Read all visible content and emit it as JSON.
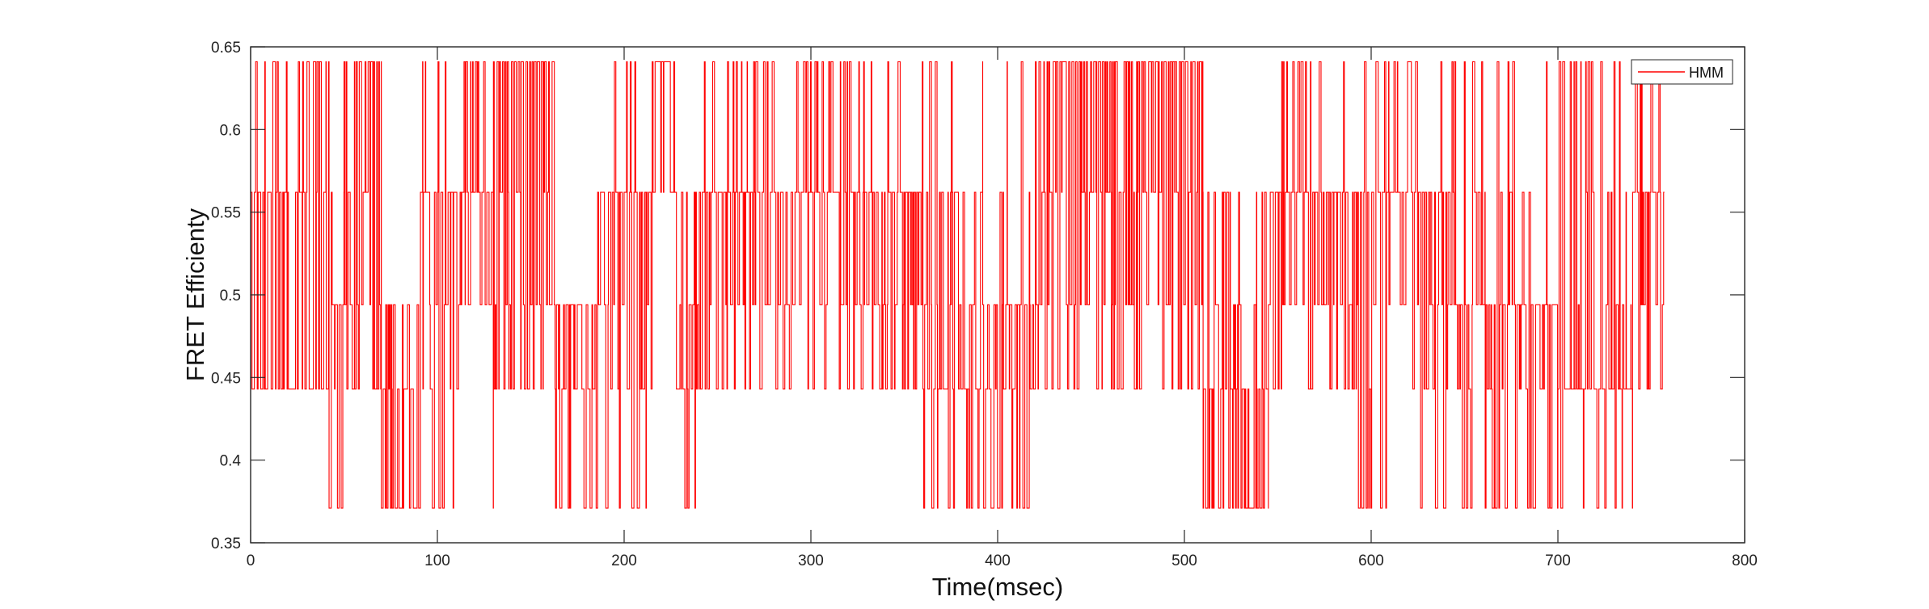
{
  "chart_data": {
    "type": "line",
    "line_style": "step",
    "xlabel": "Time(msec)",
    "ylabel": "FRET Efficienty",
    "xlim": [
      0,
      800
    ],
    "ylim": [
      0.35,
      0.65
    ],
    "xticks": [
      "0",
      "100",
      "200",
      "300",
      "400",
      "500",
      "600",
      "700",
      "800"
    ],
    "yticks": [
      "0.35",
      "0.4",
      "0.45",
      "0.5",
      "0.55",
      "0.6",
      "0.65"
    ],
    "grid": false,
    "legend": {
      "position": "top-right",
      "entries": [
        "HMM"
      ]
    },
    "series": [
      {
        "name": "HMM",
        "color": "#ff0000",
        "state_levels": [
          0.371,
          0.443,
          0.494,
          0.562,
          0.641
        ],
        "x_range": [
          0,
          757
        ],
        "segments": [
          {
            "x": [
              0,
              42
            ],
            "levels": [
              0.443,
              0.562,
              0.641
            ],
            "dominant": 0.443
          },
          {
            "x": [
              42,
              50
            ],
            "levels": [
              0.371,
              0.443,
              0.494,
              0.562
            ],
            "dominant": 0.494
          },
          {
            "x": [
              50,
              70
            ],
            "levels": [
              0.443,
              0.494,
              0.562,
              0.641
            ],
            "dominant": 0.641
          },
          {
            "x": [
              70,
              90
            ],
            "levels": [
              0.371,
              0.443,
              0.494
            ],
            "dominant": 0.371
          },
          {
            "x": [
              90,
              130
            ],
            "levels": [
              0.371,
              0.443,
              0.494,
              0.562,
              0.641
            ],
            "dominant": 0.562
          },
          {
            "x": [
              130,
              163
            ],
            "levels": [
              0.443,
              0.494,
              0.562,
              0.641
            ],
            "dominant": 0.641
          },
          {
            "x": [
              163,
              185
            ],
            "levels": [
              0.371,
              0.443,
              0.494
            ],
            "dominant": 0.494
          },
          {
            "x": [
              185,
              215
            ],
            "levels": [
              0.371,
              0.443,
              0.494,
              0.562,
              0.641
            ],
            "dominant": 0.562
          },
          {
            "x": [
              215,
              228
            ],
            "levels": [
              0.562,
              0.641
            ],
            "dominant": 0.641
          },
          {
            "x": [
              228,
              240
            ],
            "levels": [
              0.371,
              0.443,
              0.494,
              0.562
            ],
            "dominant": 0.443
          },
          {
            "x": [
              240,
              360
            ],
            "levels": [
              0.443,
              0.494,
              0.562,
              0.641
            ],
            "dominant": 0.562
          },
          {
            "x": [
              360,
              392
            ],
            "levels": [
              0.371,
              0.443,
              0.494,
              0.562,
              0.641
            ],
            "dominant": 0.443
          },
          {
            "x": [
              392,
              425
            ],
            "levels": [
              0.371,
              0.443,
              0.494,
              0.562,
              0.641
            ],
            "dominant": 0.494
          },
          {
            "x": [
              425,
              510
            ],
            "levels": [
              0.443,
              0.494,
              0.562,
              0.641
            ],
            "dominant": 0.641
          },
          {
            "x": [
              510,
              545
            ],
            "levels": [
              0.371,
              0.443,
              0.494,
              0.562
            ],
            "dominant": 0.371
          },
          {
            "x": [
              545,
              590
            ],
            "levels": [
              0.443,
              0.494,
              0.562,
              0.641
            ],
            "dominant": 0.562
          },
          {
            "x": [
              590,
              640
            ],
            "levels": [
              0.371,
              0.443,
              0.494,
              0.562,
              0.641
            ],
            "dominant": 0.562
          },
          {
            "x": [
              640,
              700
            ],
            "levels": [
              0.371,
              0.443,
              0.494,
              0.562,
              0.641
            ],
            "dominant": 0.494
          },
          {
            "x": [
              700,
              740
            ],
            "levels": [
              0.371,
              0.443,
              0.494,
              0.562,
              0.641
            ],
            "dominant": 0.443
          },
          {
            "x": [
              740,
              757
            ],
            "levels": [
              0.443,
              0.494,
              0.562,
              0.641
            ],
            "dominant": 0.562
          }
        ]
      }
    ]
  }
}
